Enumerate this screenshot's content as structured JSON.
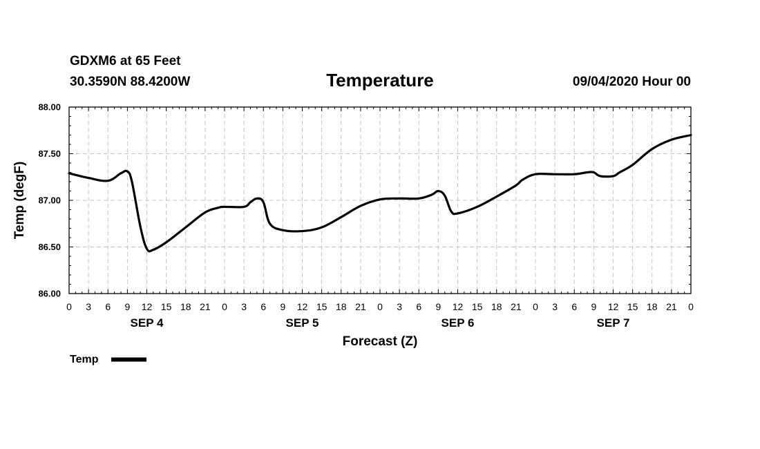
{
  "header": {
    "station": "GDXM6 at 65 Feet",
    "coords": "30.3590N 88.4200W",
    "title": "Temperature",
    "issued": "09/04/2020 Hour 00"
  },
  "chart_data": {
    "type": "line",
    "title": "Temperature",
    "xlabel": "Forecast (Z)",
    "ylabel": "Temp (degF)",
    "x_unit": "forecast hour",
    "xlim": [
      0,
      96
    ],
    "ylim": [
      86.0,
      88.0
    ],
    "y_ticks": [
      "88.00",
      "87.50",
      "87.00",
      "86.50",
      "86.00"
    ],
    "y_tick_values": [
      88.0,
      87.5,
      87.0,
      86.5,
      86.0
    ],
    "x_ticks": [
      "0",
      "3",
      "6",
      "9",
      "12",
      "15",
      "18",
      "21",
      "0",
      "3",
      "6",
      "9",
      "12",
      "15",
      "18",
      "21",
      "0",
      "3",
      "6",
      "9",
      "12",
      "15",
      "18",
      "21",
      "0",
      "3",
      "6",
      "9",
      "12",
      "15",
      "18",
      "21",
      "0"
    ],
    "day_labels": [
      {
        "label": "SEP 4",
        "hour": 12
      },
      {
        "label": "SEP 5",
        "hour": 36
      },
      {
        "label": "SEP 6",
        "hour": 60
      },
      {
        "label": "SEP 7",
        "hour": 84
      }
    ],
    "grid": true,
    "legend": {
      "position": "bottom-left",
      "entries": [
        "Temp"
      ]
    },
    "series": [
      {
        "name": "Temp",
        "x": [
          0,
          3,
          6,
          8,
          9,
          9.7,
          11,
          12,
          13,
          15,
          18,
          21,
          23,
          24,
          27,
          28,
          29,
          30,
          31,
          33,
          36,
          39,
          42,
          45,
          48,
          51,
          54,
          56,
          57,
          58,
          59,
          60,
          63,
          66,
          69,
          70,
          72,
          75,
          78,
          80,
          81,
          82,
          84,
          85,
          87,
          90,
          93,
          96
        ],
        "y": [
          87.29,
          87.24,
          87.21,
          87.29,
          87.31,
          87.2,
          86.72,
          86.48,
          86.47,
          86.55,
          86.71,
          86.87,
          86.92,
          86.93,
          86.93,
          86.98,
          87.02,
          86.98,
          86.75,
          86.68,
          86.67,
          86.71,
          86.82,
          86.94,
          87.01,
          87.02,
          87.02,
          87.06,
          87.1,
          87.05,
          86.88,
          86.86,
          86.93,
          87.04,
          87.16,
          87.22,
          87.28,
          87.28,
          87.28,
          87.3,
          87.3,
          87.26,
          87.26,
          87.3,
          87.38,
          87.55,
          87.65,
          87.7
        ]
      }
    ]
  }
}
